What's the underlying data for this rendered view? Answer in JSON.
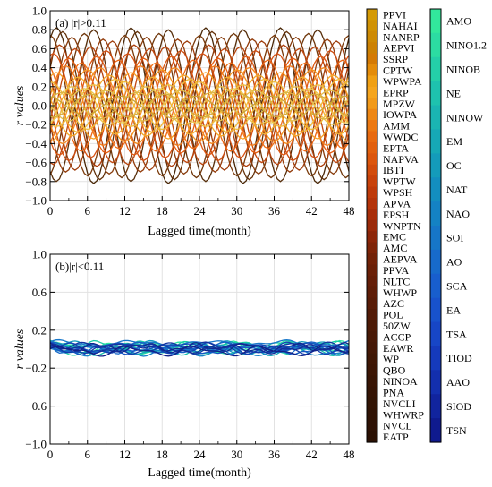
{
  "chart_data": [
    {
      "type": "line",
      "panel_label": "(a) |r|>0.11",
      "xlabel": "Lagged time(month)",
      "ylabel": "r values",
      "xlim": [
        0,
        48
      ],
      "ylim": [
        -1.0,
        1.0
      ],
      "xticks": [
        0,
        6,
        12,
        18,
        24,
        30,
        36,
        42,
        48
      ],
      "yticks": [
        -1.0,
        -0.8,
        -0.6,
        -0.4,
        -0.2,
        0.0,
        0.2,
        0.4,
        0.6,
        0.8,
        1.0
      ],
      "yticklabels": [
        "−1.0",
        "−0.8",
        "−0.6",
        "−0.4",
        "−0.2",
        "0.0",
        "0.2",
        "0.4",
        "0.6",
        "0.8",
        "1.0"
      ],
      "grid": true,
      "colormap": [
        "#4a2808",
        "#7a3a0a",
        "#a83e0c",
        "#d44e10",
        "#ee6a16",
        "#f59a22",
        "#f2bb36",
        "#e9c652",
        "#c9a336"
      ],
      "series_model": "oscillating correlations, period 12 months, amplitudes 0.10-0.82",
      "series": [
        {
          "amplitude": 0.82,
          "phase_month": 1.0
        },
        {
          "amplitude": 0.8,
          "phase_month": 7.0
        },
        {
          "amplitude": 0.78,
          "phase_month": 2.0
        },
        {
          "amplitude": 0.76,
          "phase_month": 5.5
        },
        {
          "amplitude": 0.74,
          "phase_month": 0.0
        },
        {
          "amplitude": 0.72,
          "phase_month": 3.5
        },
        {
          "amplitude": 0.7,
          "phase_month": 8.5
        },
        {
          "amplitude": 0.68,
          "phase_month": 10.0
        },
        {
          "amplitude": 0.64,
          "phase_month": 1.5
        },
        {
          "amplitude": 0.62,
          "phase_month": 6.5
        },
        {
          "amplitude": 0.6,
          "phase_month": 4.0
        },
        {
          "amplitude": 0.58,
          "phase_month": 9.0
        },
        {
          "amplitude": 0.55,
          "phase_month": 0.5
        },
        {
          "amplitude": 0.52,
          "phase_month": 7.5
        },
        {
          "amplitude": 0.5,
          "phase_month": 3.0
        },
        {
          "amplitude": 0.48,
          "phase_month": 11.0
        },
        {
          "amplitude": 0.45,
          "phase_month": 5.0
        },
        {
          "amplitude": 0.42,
          "phase_month": 2.5
        },
        {
          "amplitude": 0.4,
          "phase_month": 8.0
        },
        {
          "amplitude": 0.38,
          "phase_month": 6.0
        },
        {
          "amplitude": 0.35,
          "phase_month": 1.0
        },
        {
          "amplitude": 0.32,
          "phase_month": 9.5
        },
        {
          "amplitude": 0.3,
          "phase_month": 4.5
        },
        {
          "amplitude": 0.28,
          "phase_month": 10.5
        },
        {
          "amplitude": 0.25,
          "phase_month": 0.0
        },
        {
          "amplitude": 0.22,
          "phase_month": 7.0
        },
        {
          "amplitude": 0.2,
          "phase_month": 3.5
        },
        {
          "amplitude": 0.18,
          "phase_month": 5.5
        },
        {
          "amplitude": 0.16,
          "phase_month": 9.0
        },
        {
          "amplitude": 0.14,
          "phase_month": 2.0
        },
        {
          "amplitude": 0.12,
          "phase_month": 6.5
        },
        {
          "amplitude": 0.1,
          "phase_month": 11.5
        }
      ]
    },
    {
      "type": "line",
      "panel_label": "(b)|r|<0.11",
      "xlabel": "Lagged time(month)",
      "ylabel": "r values",
      "xlim": [
        0,
        48
      ],
      "ylim": [
        -1.0,
        1.0
      ],
      "xticks": [
        0,
        6,
        12,
        18,
        24,
        30,
        36,
        42,
        48
      ],
      "yticks": [
        -1.0,
        -0.6,
        -0.2,
        0.2,
        0.6,
        1.0
      ],
      "yticklabels": [
        "−1.0",
        "−0.6",
        "−0.2",
        "0.2",
        "0.6",
        "1.0"
      ],
      "grid": true,
      "colormap": [
        "#2ee6a0",
        "#18c8a8",
        "#12a8b4",
        "#1690c4",
        "#1870cc",
        "#1656c4",
        "#1440b0",
        "#12309a",
        "#101f86"
      ],
      "series_model": "weak correlations, values within about -0.08 to 0.12",
      "series": [
        {
          "offset": 0.03,
          "amp1": 0.04,
          "period1": 9.0,
          "phase1": 0.3,
          "amp2": 0.02,
          "period2": 4.2,
          "phase2": 1.1
        },
        {
          "offset": -0.02,
          "amp1": 0.03,
          "period1": 11.0,
          "phase1": 2.1,
          "amp2": 0.02,
          "period2": 5.1,
          "phase2": 0.4
        },
        {
          "offset": 0.05,
          "amp1": 0.03,
          "period1": 7.5,
          "phase1": 1.4,
          "amp2": 0.015,
          "period2": 3.6,
          "phase2": 2.2
        },
        {
          "offset": 0.0,
          "amp1": 0.05,
          "period1": 12.5,
          "phase1": 0.8,
          "amp2": 0.02,
          "period2": 4.8,
          "phase2": 1.7
        },
        {
          "offset": 0.02,
          "amp1": 0.025,
          "period1": 8.2,
          "phase1": 2.9,
          "amp2": 0.015,
          "period2": 3.3,
          "phase2": 0.6
        },
        {
          "offset": -0.01,
          "amp1": 0.04,
          "period1": 10.3,
          "phase1": 1.9,
          "amp2": 0.02,
          "period2": 5.6,
          "phase2": 2.8
        },
        {
          "offset": 0.04,
          "amp1": 0.035,
          "period1": 13.0,
          "phase1": 0.1,
          "amp2": 0.015,
          "period2": 4.0,
          "phase2": 1.3
        },
        {
          "offset": 0.01,
          "amp1": 0.03,
          "period1": 6.8,
          "phase1": 2.4,
          "amp2": 0.02,
          "period2": 3.9,
          "phase2": 0.9
        },
        {
          "offset": -0.03,
          "amp1": 0.03,
          "period1": 9.6,
          "phase1": 1.2,
          "amp2": 0.015,
          "period2": 4.5,
          "phase2": 2.5
        },
        {
          "offset": 0.06,
          "amp1": 0.025,
          "period1": 11.8,
          "phase1": 0.6,
          "amp2": 0.015,
          "period2": 5.3,
          "phase2": 0.2
        },
        {
          "offset": 0.0,
          "amp1": 0.035,
          "period1": 8.7,
          "phase1": 2.7,
          "amp2": 0.02,
          "period2": 3.1,
          "phase2": 1.9
        },
        {
          "offset": 0.02,
          "amp1": 0.04,
          "period1": 14.0,
          "phase1": 1.6,
          "amp2": 0.015,
          "period2": 4.6,
          "phase2": 0.7
        },
        {
          "offset": -0.02,
          "amp1": 0.03,
          "period1": 7.1,
          "phase1": 0.9,
          "amp2": 0.02,
          "period2": 3.7,
          "phase2": 2.0
        },
        {
          "offset": 0.03,
          "amp1": 0.03,
          "period1": 10.9,
          "phase1": 2.2,
          "amp2": 0.015,
          "period2": 5.8,
          "phase2": 1.5
        },
        {
          "offset": 0.01,
          "amp1": 0.045,
          "period1": 12.0,
          "phase1": 0.4,
          "amp2": 0.02,
          "period2": 4.3,
          "phase2": 2.6
        },
        {
          "offset": -0.01,
          "amp1": 0.03,
          "period1": 9.2,
          "phase1": 1.7,
          "amp2": 0.015,
          "period2": 3.5,
          "phase2": 0.3
        },
        {
          "offset": 0.04,
          "amp1": 0.02,
          "period1": 6.5,
          "phase1": 2.5,
          "amp2": 0.015,
          "period2": 5.0,
          "phase2": 1.8
        },
        {
          "offset": 0.0,
          "amp1": 0.03,
          "period1": 13.5,
          "phase1": 1.0,
          "amp2": 0.02,
          "period2": 4.1,
          "phase2": 0.5
        },
        {
          "offset": 0.02,
          "amp1": 0.035,
          "period1": 8.0,
          "phase1": 2.0,
          "amp2": 0.015,
          "period2": 3.4,
          "phase2": 2.3
        },
        {
          "offset": -0.02,
          "amp1": 0.04,
          "period1": 10.6,
          "phase1": 0.2,
          "amp2": 0.02,
          "period2": 5.4,
          "phase2": 1.0
        }
      ]
    }
  ],
  "legend_warm": [
    "PPVI",
    "NAHAI",
    "NANRP",
    "AEPVI",
    "SSRP",
    "CPTW",
    "WPWPA",
    "EPRP",
    "MPZW",
    "IOWPA",
    "AMM",
    "WWDC",
    "EPTA",
    "NAPVA",
    "IBTI",
    "WPTW",
    "WPSH",
    "APVA",
    "EPSH",
    "WNPTN",
    "EMC",
    "AMC",
    "AEPVA",
    "PPVA",
    "NLTC",
    "WHWP",
    "AZC",
    "POL",
    "50ZW",
    "ACCP",
    "EAWR",
    "WP",
    "QBO",
    "NINOA",
    "PNA",
    "NVCLI",
    "WHWRP",
    "NVCL",
    "EATP"
  ],
  "legend_warm_colors": [
    "#d49a06",
    "#d09205",
    "#cd8a05",
    "#cc8104",
    "#d47a05",
    "#e48c0a",
    "#f0a014",
    "#f5a51e",
    "#f29a1a",
    "#ee8714",
    "#ec7812",
    "#e86a10",
    "#e2600e",
    "#dc560d",
    "#d24c0c",
    "#c8420b",
    "#be3a0a",
    "#b4340a",
    "#a82e0a",
    "#9a2a0a",
    "#8c2609",
    "#7e2408",
    "#722208",
    "#6a2008",
    "#641e08",
    "#5e1d07",
    "#581c07",
    "#521b07",
    "#4c1a06",
    "#481906",
    "#441806",
    "#3f1705",
    "#3c1605",
    "#381505",
    "#351405",
    "#321405",
    "#301305",
    "#2e1205",
    "#2b1104"
  ],
  "legend_cool": [
    "AMO",
    "NINO1.2",
    "NINOB",
    "NE",
    "NINOW",
    "EM",
    "OC",
    "NAT",
    "NAO",
    "SOI",
    "AO",
    "SCA",
    "EA",
    "TSA",
    "TIOD",
    "AAO",
    "SIOD",
    "TSN"
  ],
  "legend_cool_colors": [
    "#32e89c",
    "#2cdca2",
    "#24cfa8",
    "#1ec2ae",
    "#1ab5b2",
    "#16a8b6",
    "#149bba",
    "#138ebf",
    "#1482c4",
    "#1676c8",
    "#176acb",
    "#185ecd",
    "#1852cc",
    "#1746c6",
    "#153abc",
    "#132fae",
    "#11249e",
    "#0f1a8e"
  ]
}
